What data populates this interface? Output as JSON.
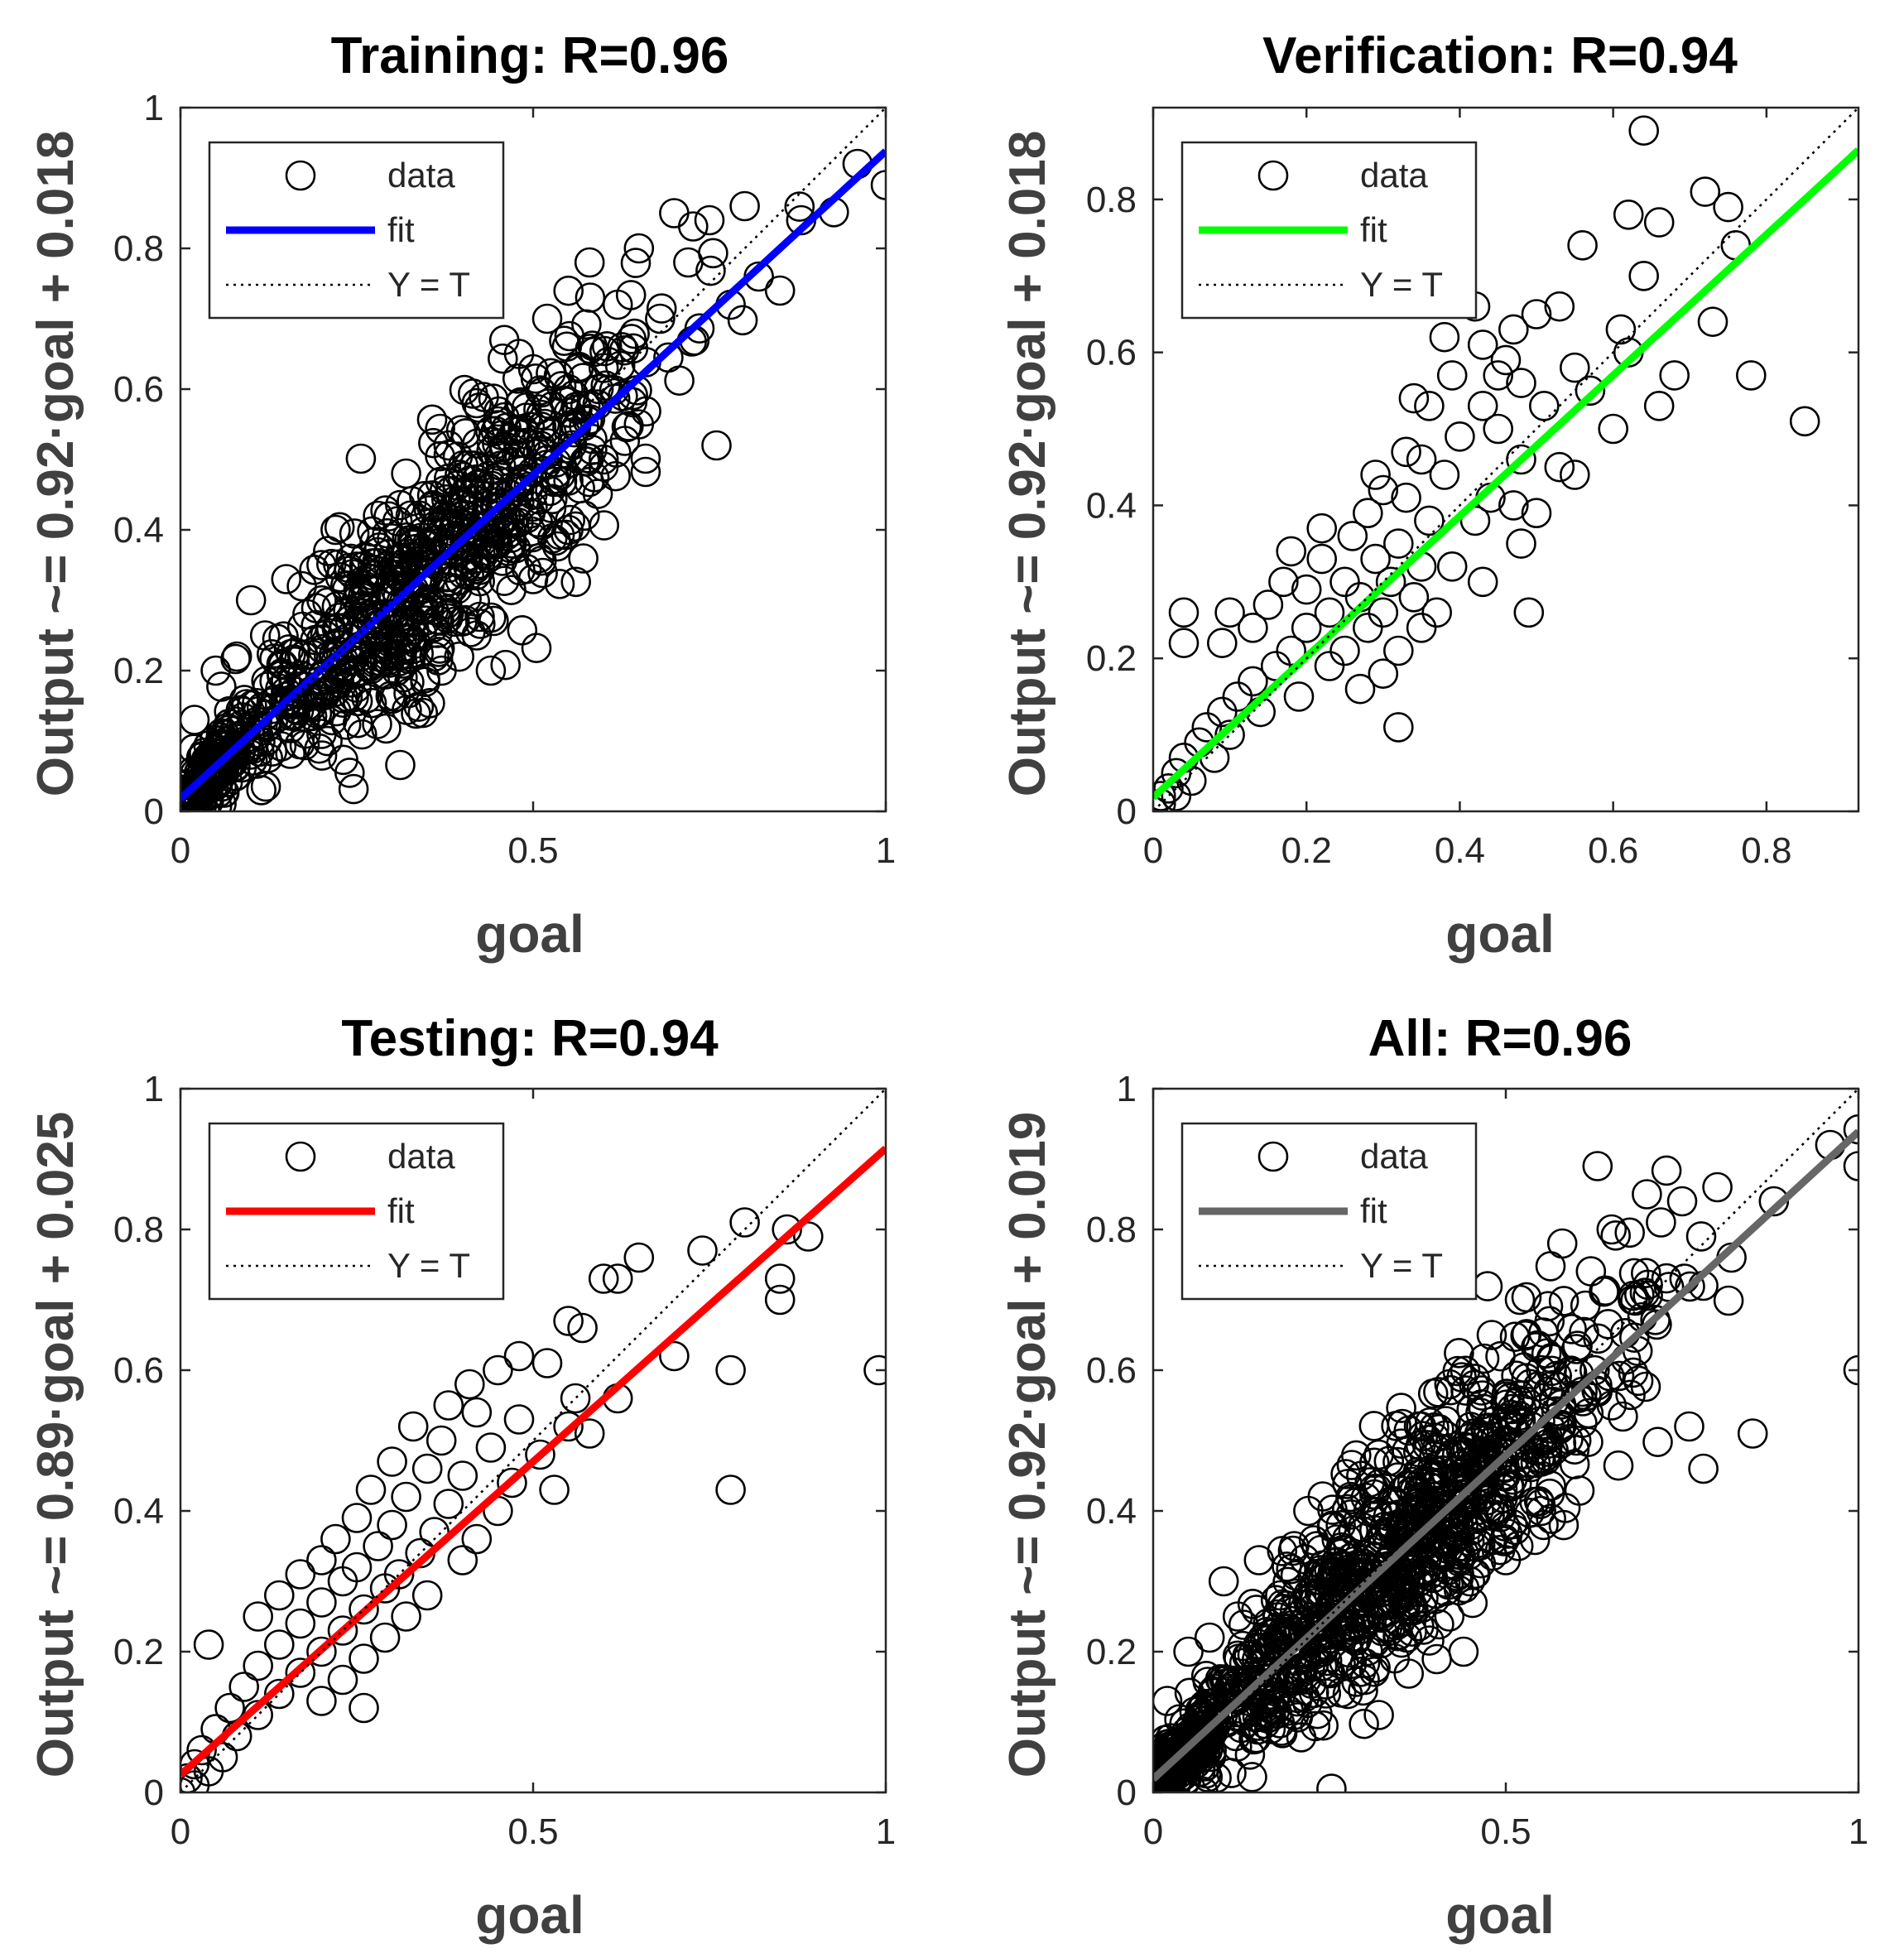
{
  "chart_data": [
    {
      "type": "scatter",
      "panel": "training",
      "title": "Training: R=0.96",
      "xlabel": "goal",
      "ylabel": "Output ~= 0.92·goal + 0.018",
      "xlim": [
        0,
        1
      ],
      "ylim": [
        0,
        1
      ],
      "xticks": [
        0,
        0.5,
        1
      ],
      "xtick_labels": [
        "0",
        "0.5",
        "1"
      ],
      "yticks": [
        0,
        0.2,
        0.4,
        0.6,
        0.8,
        1
      ],
      "ytick_labels": [
        "0",
        "0.2",
        "0.4",
        "0.6",
        "0.8",
        "1"
      ],
      "fit": {
        "slope": 0.92,
        "intercept": 0.018,
        "color": "#0000ff"
      },
      "legend": {
        "position": "top-left",
        "entries": [
          "data",
          "fit",
          "Y = T"
        ]
      },
      "points_estimated": [
        [
          0.02,
          0.13
        ],
        [
          0.05,
          0.2
        ],
        [
          0.08,
          0.22
        ],
        [
          0.1,
          0.3
        ],
        [
          0.12,
          0.25
        ],
        [
          0.15,
          0.33
        ],
        [
          0.18,
          0.28
        ],
        [
          0.2,
          0.35
        ],
        [
          0.22,
          0.4
        ],
        [
          0.25,
          0.3
        ],
        [
          0.28,
          0.42
        ],
        [
          0.3,
          0.33
        ],
        [
          0.32,
          0.48
        ],
        [
          0.35,
          0.38
        ],
        [
          0.38,
          0.52
        ],
        [
          0.4,
          0.44
        ],
        [
          0.42,
          0.58
        ],
        [
          0.45,
          0.47
        ],
        [
          0.48,
          0.65
        ],
        [
          0.5,
          0.52
        ],
        [
          0.52,
          0.7
        ],
        [
          0.55,
          0.6
        ],
        [
          0.58,
          0.78
        ],
        [
          0.6,
          0.63
        ],
        [
          0.62,
          0.72
        ],
        [
          0.65,
          0.8
        ],
        [
          0.68,
          0.7
        ],
        [
          0.7,
          0.85
        ],
        [
          0.72,
          0.78
        ],
        [
          0.75,
          0.84
        ],
        [
          0.78,
          0.72
        ],
        [
          0.8,
          0.86
        ],
        [
          0.82,
          0.76
        ],
        [
          0.85,
          0.74
        ],
        [
          0.88,
          0.84
        ],
        [
          0.96,
          0.92
        ],
        [
          1.0,
          0.89
        ],
        [
          0.3,
          0.16
        ],
        [
          0.24,
          0.2
        ],
        [
          0.2,
          0.11
        ],
        [
          0.42,
          0.25
        ],
        [
          0.5,
          0.33
        ],
        [
          0.55,
          0.4
        ],
        [
          0.6,
          0.5
        ],
        [
          0.65,
          0.55
        ],
        [
          0.76,
          0.52
        ],
        [
          0.44,
          0.2
        ],
        [
          0.36,
          0.22
        ],
        [
          0.28,
          0.22
        ],
        [
          0.16,
          0.19
        ],
        [
          0.55,
          0.47
        ],
        [
          0.45,
          0.38
        ],
        [
          0.35,
          0.3
        ]
      ]
    },
    {
      "type": "scatter",
      "panel": "verification",
      "title": "Verification: R=0.94",
      "xlabel": "goal",
      "ylabel": "Output ~= 0.92·goal + 0.018",
      "xlim": [
        0,
        0.92
      ],
      "ylim": [
        0,
        0.92
      ],
      "xticks": [
        0,
        0.2,
        0.4,
        0.6,
        0.8
      ],
      "xtick_labels": [
        "0",
        "0.2",
        "0.4",
        "0.6",
        "0.8"
      ],
      "yticks": [
        0,
        0.2,
        0.4,
        0.6,
        0.8
      ],
      "ytick_labels": [
        "0",
        "0.2",
        "0.4",
        "0.6",
        "0.8"
      ],
      "fit": {
        "slope": 0.92,
        "intercept": 0.018,
        "color": "#00ff00"
      },
      "legend": {
        "position": "top-left",
        "entries": [
          "data",
          "fit",
          "Y = T"
        ]
      },
      "points": [
        [
          0.64,
          0.89
        ],
        [
          0.72,
          0.81
        ],
        [
          0.75,
          0.79
        ],
        [
          0.62,
          0.78
        ],
        [
          0.66,
          0.77
        ],
        [
          0.56,
          0.74
        ],
        [
          0.76,
          0.74
        ],
        [
          0.64,
          0.7
        ],
        [
          0.73,
          0.64
        ],
        [
          0.4,
          0.67
        ],
        [
          0.42,
          0.66
        ],
        [
          0.53,
          0.66
        ],
        [
          0.47,
          0.63
        ],
        [
          0.5,
          0.65
        ],
        [
          0.38,
          0.62
        ],
        [
          0.43,
          0.61
        ],
        [
          0.46,
          0.59
        ],
        [
          0.55,
          0.58
        ],
        [
          0.61,
          0.63
        ],
        [
          0.62,
          0.6
        ],
        [
          0.68,
          0.57
        ],
        [
          0.78,
          0.57
        ],
        [
          0.39,
          0.57
        ],
        [
          0.45,
          0.57
        ],
        [
          0.48,
          0.56
        ],
        [
          0.57,
          0.55
        ],
        [
          0.34,
          0.54
        ],
        [
          0.36,
          0.53
        ],
        [
          0.43,
          0.53
        ],
        [
          0.51,
          0.53
        ],
        [
          0.66,
          0.53
        ],
        [
          0.85,
          0.51
        ],
        [
          0.6,
          0.5
        ],
        [
          0.45,
          0.5
        ],
        [
          0.4,
          0.49
        ],
        [
          0.33,
          0.47
        ],
        [
          0.35,
          0.46
        ],
        [
          0.48,
          0.46
        ],
        [
          0.53,
          0.45
        ],
        [
          0.29,
          0.44
        ],
        [
          0.38,
          0.44
        ],
        [
          0.55,
          0.44
        ],
        [
          0.3,
          0.42
        ],
        [
          0.33,
          0.41
        ],
        [
          0.44,
          0.41
        ],
        [
          0.47,
          0.4
        ],
        [
          0.5,
          0.39
        ],
        [
          0.28,
          0.39
        ],
        [
          0.36,
          0.38
        ],
        [
          0.42,
          0.38
        ],
        [
          0.22,
          0.37
        ],
        [
          0.26,
          0.36
        ],
        [
          0.32,
          0.35
        ],
        [
          0.48,
          0.35
        ],
        [
          0.18,
          0.34
        ],
        [
          0.22,
          0.33
        ],
        [
          0.29,
          0.33
        ],
        [
          0.35,
          0.32
        ],
        [
          0.39,
          0.32
        ],
        [
          0.17,
          0.3
        ],
        [
          0.25,
          0.3
        ],
        [
          0.31,
          0.3
        ],
        [
          0.43,
          0.3
        ],
        [
          0.2,
          0.29
        ],
        [
          0.27,
          0.28
        ],
        [
          0.34,
          0.28
        ],
        [
          0.15,
          0.27
        ],
        [
          0.23,
          0.26
        ],
        [
          0.3,
          0.26
        ],
        [
          0.37,
          0.26
        ],
        [
          0.49,
          0.26
        ],
        [
          0.1,
          0.26
        ],
        [
          0.04,
          0.26
        ],
        [
          0.13,
          0.24
        ],
        [
          0.2,
          0.24
        ],
        [
          0.28,
          0.24
        ],
        [
          0.35,
          0.24
        ],
        [
          0.04,
          0.22
        ],
        [
          0.09,
          0.22
        ],
        [
          0.18,
          0.21
        ],
        [
          0.25,
          0.21
        ],
        [
          0.32,
          0.21
        ],
        [
          0.16,
          0.19
        ],
        [
          0.23,
          0.19
        ],
        [
          0.3,
          0.18
        ],
        [
          0.13,
          0.17
        ],
        [
          0.27,
          0.16
        ],
        [
          0.11,
          0.15
        ],
        [
          0.19,
          0.15
        ],
        [
          0.09,
          0.13
        ],
        [
          0.14,
          0.13
        ],
        [
          0.07,
          0.11
        ],
        [
          0.32,
          0.11
        ],
        [
          0.06,
          0.09
        ],
        [
          0.1,
          0.1
        ],
        [
          0.04,
          0.07
        ],
        [
          0.08,
          0.07
        ],
        [
          0.03,
          0.05
        ],
        [
          0.05,
          0.04
        ],
        [
          0.02,
          0.03
        ],
        [
          0.01,
          0.02
        ],
        [
          0.03,
          0.02
        ],
        [
          0.01,
          0.01
        ],
        [
          0.0,
          0.0
        ]
      ]
    },
    {
      "type": "scatter",
      "panel": "testing",
      "title": "Testing: R=0.94",
      "xlabel": "goal",
      "ylabel": "Output ~= 0.89·goal + 0.025",
      "xlim": [
        0,
        1
      ],
      "ylim": [
        0,
        1
      ],
      "xticks": [
        0,
        0.5,
        1
      ],
      "xtick_labels": [
        "0",
        "0.5",
        "1"
      ],
      "yticks": [
        0,
        0.2,
        0.4,
        0.6,
        0.8,
        1
      ],
      "ytick_labels": [
        "0",
        "0.2",
        "0.4",
        "0.6",
        "0.8",
        "1"
      ],
      "fit": {
        "slope": 0.89,
        "intercept": 0.025,
        "color": "#ff0000"
      },
      "legend": {
        "position": "top-left",
        "entries": [
          "data",
          "fit",
          "Y = T"
        ]
      },
      "points": [
        [
          0.8,
          0.81
        ],
        [
          0.86,
          0.8
        ],
        [
          0.89,
          0.79
        ],
        [
          0.74,
          0.77
        ],
        [
          0.65,
          0.76
        ],
        [
          0.6,
          0.73
        ],
        [
          0.62,
          0.73
        ],
        [
          0.85,
          0.73
        ],
        [
          0.85,
          0.7
        ],
        [
          0.55,
          0.67
        ],
        [
          0.57,
          0.66
        ],
        [
          0.99,
          0.6
        ],
        [
          0.7,
          0.62
        ],
        [
          0.78,
          0.6
        ],
        [
          0.48,
          0.62
        ],
        [
          0.52,
          0.61
        ],
        [
          0.45,
          0.6
        ],
        [
          0.41,
          0.58
        ],
        [
          0.56,
          0.56
        ],
        [
          0.62,
          0.56
        ],
        [
          0.38,
          0.55
        ],
        [
          0.42,
          0.54
        ],
        [
          0.48,
          0.53
        ],
        [
          0.55,
          0.52
        ],
        [
          0.58,
          0.51
        ],
        [
          0.33,
          0.52
        ],
        [
          0.37,
          0.5
        ],
        [
          0.44,
          0.49
        ],
        [
          0.51,
          0.48
        ],
        [
          0.3,
          0.47
        ],
        [
          0.35,
          0.46
        ],
        [
          0.4,
          0.45
        ],
        [
          0.47,
          0.44
        ],
        [
          0.53,
          0.43
        ],
        [
          0.78,
          0.43
        ],
        [
          0.27,
          0.43
        ],
        [
          0.32,
          0.42
        ],
        [
          0.38,
          0.41
        ],
        [
          0.45,
          0.4
        ],
        [
          0.25,
          0.39
        ],
        [
          0.3,
          0.38
        ],
        [
          0.36,
          0.37
        ],
        [
          0.42,
          0.36
        ],
        [
          0.22,
          0.36
        ],
        [
          0.28,
          0.35
        ],
        [
          0.34,
          0.34
        ],
        [
          0.4,
          0.33
        ],
        [
          0.2,
          0.33
        ],
        [
          0.25,
          0.32
        ],
        [
          0.31,
          0.31
        ],
        [
          0.17,
          0.31
        ],
        [
          0.23,
          0.3
        ],
        [
          0.29,
          0.29
        ],
        [
          0.35,
          0.28
        ],
        [
          0.14,
          0.28
        ],
        [
          0.2,
          0.27
        ],
        [
          0.26,
          0.26
        ],
        [
          0.32,
          0.25
        ],
        [
          0.11,
          0.25
        ],
        [
          0.17,
          0.24
        ],
        [
          0.23,
          0.23
        ],
        [
          0.29,
          0.22
        ],
        [
          0.04,
          0.21
        ],
        [
          0.14,
          0.21
        ],
        [
          0.2,
          0.2
        ],
        [
          0.26,
          0.19
        ],
        [
          0.11,
          0.18
        ],
        [
          0.17,
          0.17
        ],
        [
          0.23,
          0.16
        ],
        [
          0.09,
          0.15
        ],
        [
          0.14,
          0.14
        ],
        [
          0.2,
          0.13
        ],
        [
          0.26,
          0.12
        ],
        [
          0.07,
          0.12
        ],
        [
          0.11,
          0.11
        ],
        [
          0.05,
          0.09
        ],
        [
          0.08,
          0.08
        ],
        [
          0.03,
          0.06
        ],
        [
          0.06,
          0.05
        ],
        [
          0.02,
          0.04
        ],
        [
          0.04,
          0.03
        ],
        [
          0.01,
          0.02
        ],
        [
          0.02,
          0.01
        ],
        [
          0.0,
          0.0
        ]
      ]
    },
    {
      "type": "scatter",
      "panel": "all",
      "title": "All: R=0.96",
      "xlabel": "goal",
      "ylabel": "Output ~= 0.92·goal + 0.019",
      "xlim": [
        0,
        1
      ],
      "ylim": [
        0,
        1
      ],
      "xticks": [
        0,
        0.5,
        1
      ],
      "xtick_labels": [
        "0",
        "0.5",
        "1"
      ],
      "yticks": [
        0,
        0.2,
        0.4,
        0.6,
        0.8,
        1
      ],
      "ytick_labels": [
        "0",
        "0.2",
        "0.4",
        "0.6",
        "0.8",
        "1"
      ],
      "fit": {
        "slope": 0.92,
        "intercept": 0.019,
        "color": "#666666"
      },
      "legend": {
        "position": "top-left",
        "entries": [
          "data",
          "fit",
          "Y = T"
        ]
      },
      "points_estimated": [
        [
          0.02,
          0.13
        ],
        [
          0.05,
          0.2
        ],
        [
          0.08,
          0.22
        ],
        [
          0.1,
          0.3
        ],
        [
          0.12,
          0.25
        ],
        [
          0.15,
          0.33
        ],
        [
          0.18,
          0.28
        ],
        [
          0.2,
          0.35
        ],
        [
          0.22,
          0.4
        ],
        [
          0.25,
          0.3
        ],
        [
          0.28,
          0.42
        ],
        [
          0.3,
          0.33
        ],
        [
          0.32,
          0.48
        ],
        [
          0.35,
          0.38
        ],
        [
          0.38,
          0.52
        ],
        [
          0.4,
          0.44
        ],
        [
          0.42,
          0.58
        ],
        [
          0.45,
          0.47
        ],
        [
          0.48,
          0.65
        ],
        [
          0.5,
          0.52
        ],
        [
          0.52,
          0.7
        ],
        [
          0.55,
          0.6
        ],
        [
          0.58,
          0.78
        ],
        [
          0.6,
          0.63
        ],
        [
          0.63,
          0.89
        ],
        [
          0.65,
          0.8
        ],
        [
          0.68,
          0.7
        ],
        [
          0.7,
          0.85
        ],
        [
          0.72,
          0.81
        ],
        [
          0.75,
          0.84
        ],
        [
          0.78,
          0.72
        ],
        [
          0.8,
          0.86
        ],
        [
          0.82,
          0.76
        ],
        [
          0.85,
          0.51
        ],
        [
          0.88,
          0.84
        ],
        [
          0.96,
          0.92
        ],
        [
          1.0,
          0.89
        ],
        [
          1.0,
          0.6
        ],
        [
          0.78,
          0.46
        ],
        [
          0.3,
          0.16
        ],
        [
          0.24,
          0.2
        ],
        [
          0.2,
          0.11
        ],
        [
          0.42,
          0.25
        ],
        [
          0.5,
          0.33
        ],
        [
          0.55,
          0.4
        ],
        [
          0.6,
          0.5
        ],
        [
          0.65,
          0.55
        ],
        [
          0.76,
          0.52
        ],
        [
          0.44,
          0.2
        ],
        [
          0.36,
          0.22
        ],
        [
          0.28,
          0.22
        ],
        [
          0.16,
          0.19
        ],
        [
          0.55,
          0.47
        ],
        [
          0.45,
          0.38
        ],
        [
          0.35,
          0.3
        ],
        [
          0.32,
          0.11
        ]
      ]
    }
  ]
}
